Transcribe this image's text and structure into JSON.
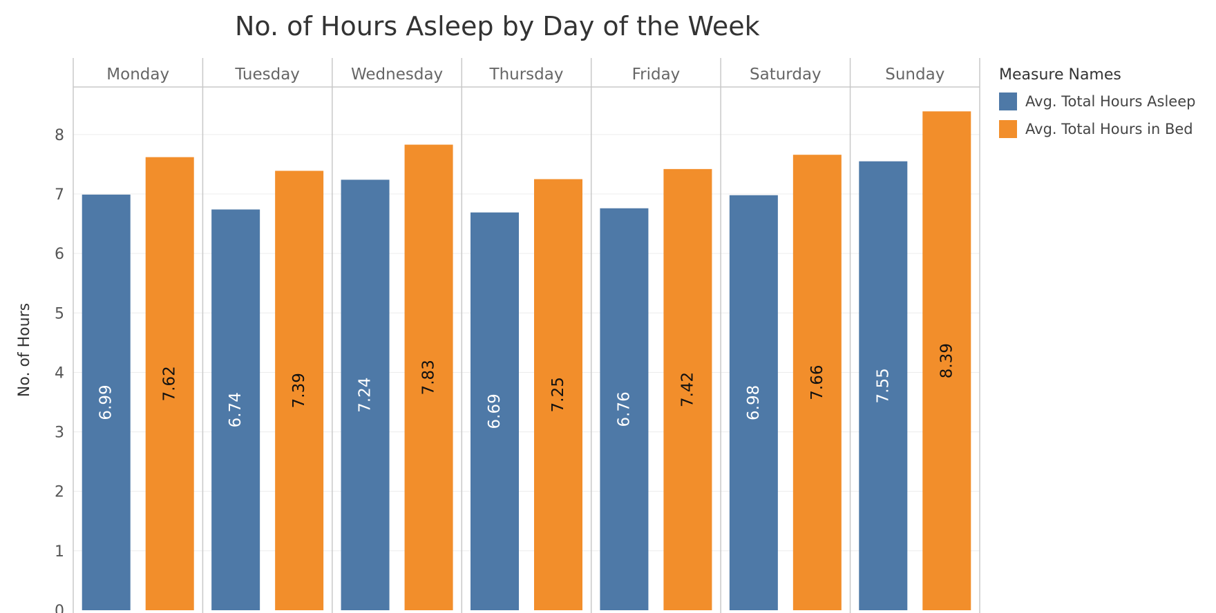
{
  "chart_data": {
    "type": "bar",
    "title": "No. of Hours Asleep by Day of the Week",
    "xlabel": "",
    "ylabel": "No. of Hours",
    "ylim": [
      0,
      8.8
    ],
    "yticks": [
      0,
      1,
      2,
      3,
      4,
      5,
      6,
      7,
      8
    ],
    "categories": [
      "Monday",
      "Tuesday",
      "Wednesday",
      "Thursday",
      "Friday",
      "Saturday",
      "Sunday"
    ],
    "series": [
      {
        "name": "Avg. Total Hours Asleep",
        "values": [
          6.99,
          6.74,
          7.24,
          6.69,
          6.76,
          6.98,
          7.55
        ],
        "labels": [
          "6.99",
          "6.74",
          "7.24",
          "6.69",
          "6.76",
          "6.98",
          "7.55"
        ],
        "color": "#4e79a7",
        "label_color": "#ffffff"
      },
      {
        "name": "Avg. Total Hours in Bed",
        "values": [
          7.62,
          7.39,
          7.83,
          7.25,
          7.42,
          7.66,
          8.39
        ],
        "labels": [
          "7.62",
          "7.39",
          "7.83",
          "7.25",
          "7.42",
          "7.66",
          "8.39"
        ],
        "color": "#f28e2b",
        "label_color": "#111111"
      }
    ],
    "legend_title": "Measure Names",
    "legend_position": "right",
    "grid": true
  }
}
